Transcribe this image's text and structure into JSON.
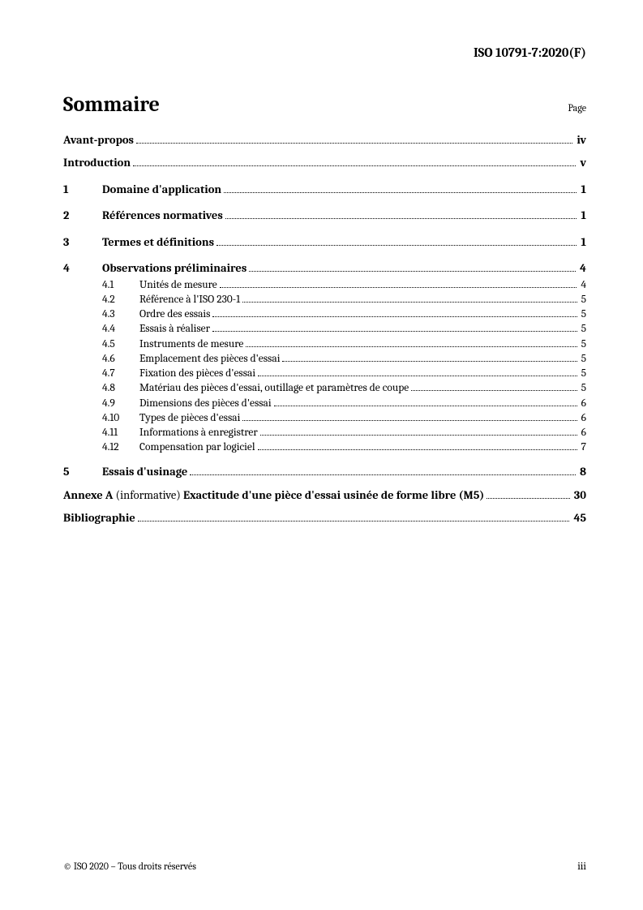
{
  "header": {
    "doc_id": "ISO 10791-7:2020(F)"
  },
  "title": "Sommaire",
  "page_label": "Page",
  "toc": {
    "front": [
      {
        "label": "Avant-propos",
        "page": "iv"
      },
      {
        "label": "Introduction",
        "page": "v"
      }
    ],
    "sections": [
      {
        "num": "1",
        "label": "Domaine d'application",
        "page": "1"
      },
      {
        "num": "2",
        "label": "Références normatives",
        "page": "1"
      },
      {
        "num": "3",
        "label": "Termes et définitions",
        "page": "1"
      },
      {
        "num": "4",
        "label": "Observations préliminaires",
        "page": "4",
        "subs": [
          {
            "num": "4.1",
            "label": "Unités de mesure",
            "page": "4"
          },
          {
            "num": "4.2",
            "label": "Référence à l'ISO 230-1",
            "page": "5"
          },
          {
            "num": "4.3",
            "label": "Ordre des essais",
            "page": "5"
          },
          {
            "num": "4.4",
            "label": "Essais à réaliser",
            "page": "5"
          },
          {
            "num": "4.5",
            "label": "Instruments de mesure",
            "page": "5"
          },
          {
            "num": "4.6",
            "label": "Emplacement des pièces d'essai",
            "page": "5"
          },
          {
            "num": "4.7",
            "label": "Fixation des pièces d'essai",
            "page": "5"
          },
          {
            "num": "4.8",
            "label": "Matériau des pièces d'essai, outillage et paramètres de coupe",
            "page": "5"
          },
          {
            "num": "4.9",
            "label": "Dimensions des pièces d'essai",
            "page": "6"
          },
          {
            "num": "4.10",
            "label": "Types de pièces d'essai",
            "page": "6"
          },
          {
            "num": "4.11",
            "label": "Informations à enregistrer",
            "page": "6"
          },
          {
            "num": "4.12",
            "label": "Compensation par logiciel",
            "page": "7"
          }
        ]
      },
      {
        "num": "5",
        "label": "Essais d'usinage",
        "page": "8"
      }
    ],
    "annex": {
      "prefix": "Annexe A",
      "note": " (informative) ",
      "label": "Exactitude d'une pièce d'essai usinée de forme libre (M5)",
      "page": "30"
    },
    "biblio": {
      "label": "Bibliographie",
      "page": "45"
    }
  },
  "footer": {
    "copyright": "© ISO 2020 – Tous droits réservés",
    "page_number": "iii"
  }
}
